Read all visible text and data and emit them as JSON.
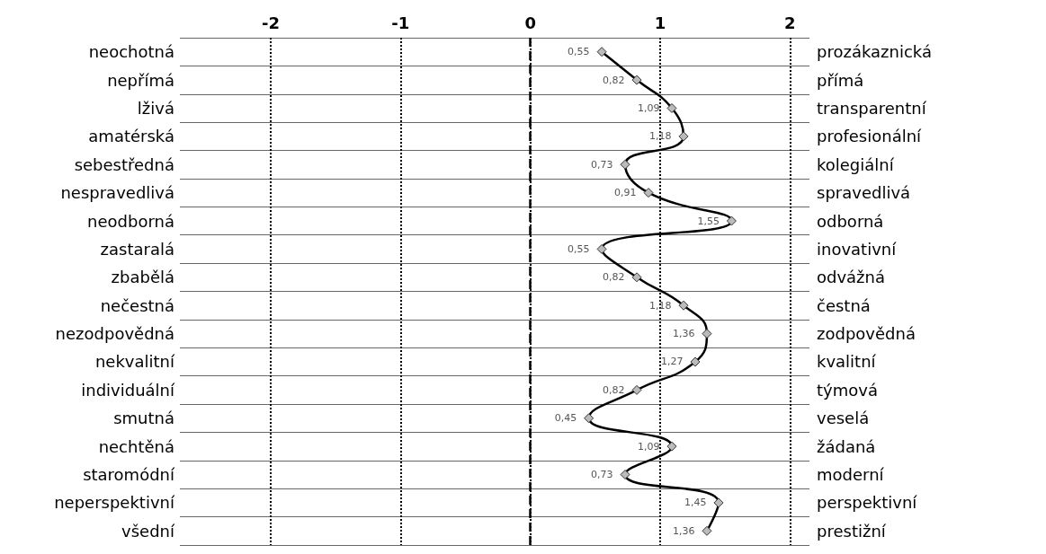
{
  "chart_data": {
    "type": "line",
    "categories": [
      "neochotná",
      "nepřímá",
      "lživá",
      "amatérská",
      "sebestředná",
      "nespravedlivá",
      "neodborná",
      "zastaralá",
      "zbabělá",
      "nečestná",
      "nezodpovědná",
      "nekvalitní",
      "individuální",
      "smutná",
      "nechtěná",
      "staromódní",
      "neperspektivní",
      "všední"
    ],
    "y2_categories": [
      "prozákaznická",
      "přímá",
      "transparentní",
      "profesionální",
      "kolegiální",
      "spravedlivá",
      "odborná",
      "inovativní",
      "odvážná",
      "čestná",
      "zodpovědná",
      "kvalitní",
      "týmová",
      "veselá",
      "žádaná",
      "moderní",
      "perspektivní",
      "prestižní"
    ],
    "series": [
      {
        "color": "#000000",
        "values": [
          0.55,
          0.82,
          1.09,
          1.18,
          0.73,
          0.91,
          1.55,
          0.55,
          0.82,
          1.18,
          1.36,
          1.27,
          0.82,
          0.45,
          1.09,
          0.73,
          1.45,
          1.36
        ],
        "value_labels": [
          "0,55",
          "0,82",
          "1,09",
          "1,18",
          "0,73",
          "0,91",
          "1,55",
          "0,55",
          "0,82",
          "1,18",
          "1,36",
          "1,27",
          "0,82",
          "0,45",
          "1,09",
          "0,73",
          "1,45",
          "1,36"
        ]
      }
    ],
    "orientation": "horizontal",
    "xlim": [
      -2.7,
      2.15
    ],
    "xticks": [
      -2,
      -1,
      0,
      1,
      2
    ],
    "grid": true,
    "marker": "diamond",
    "line_style": "solid",
    "ref_lines": [
      {
        "axis": "x",
        "value": 0,
        "line_style": "dashed",
        "color": "#000000"
      }
    ]
  }
}
